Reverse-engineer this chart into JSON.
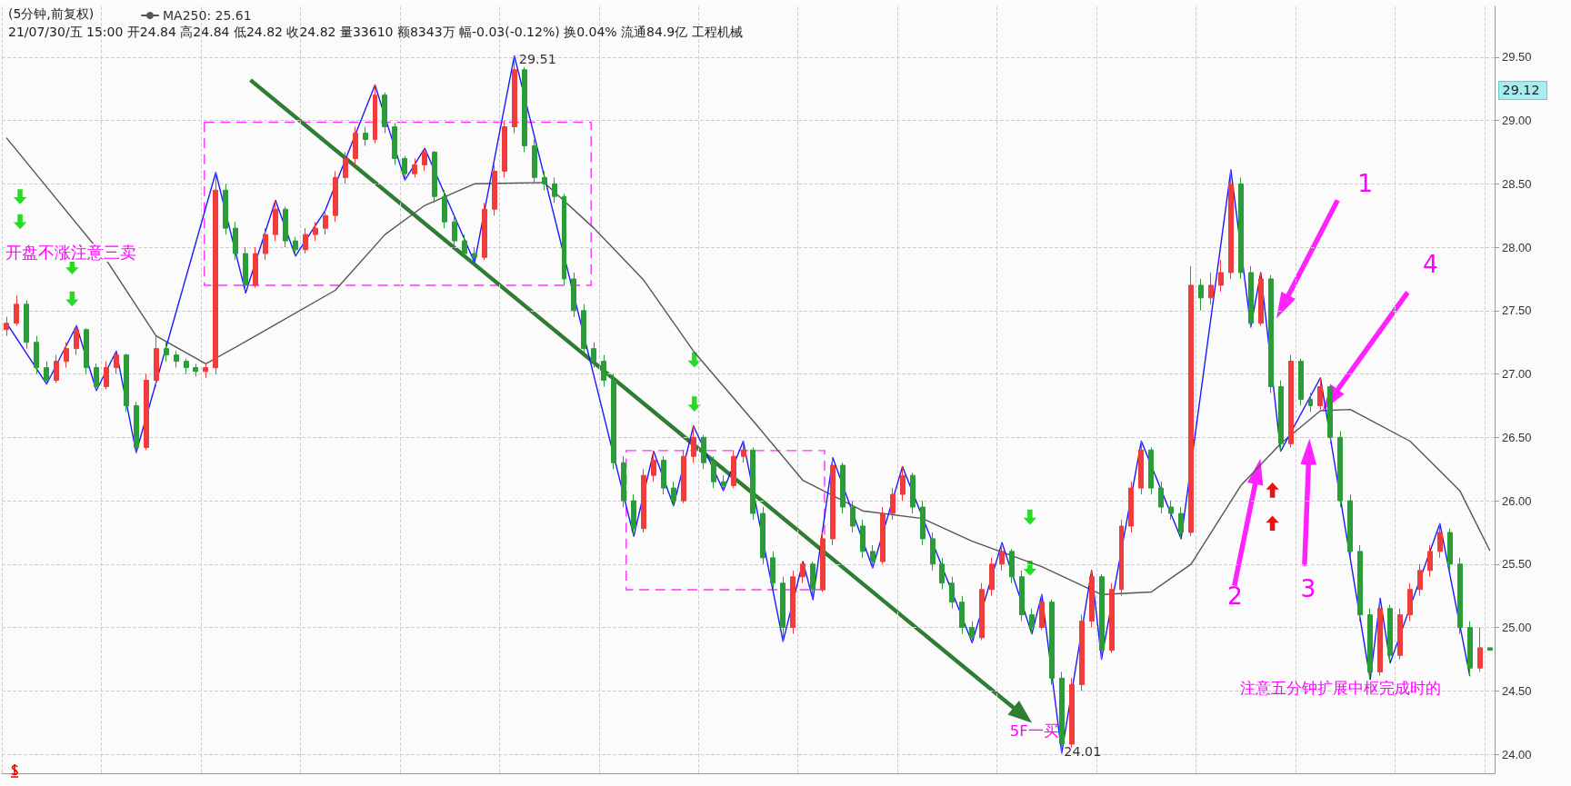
{
  "chart_data": {
    "type": "candlestick",
    "title": "(5分钟,前复权)",
    "subtitle": "21/07/30/五 15:00 开24.84 高24.84 低24.82 收24.82 量33610 额8343万 幅-0.03(-0.12%) 换0.04% 流通84.9亿 工程机械",
    "categories": [
      null,
      null,
      null,
      null,
      null,
      null,
      null,
      null,
      null,
      null,
      null,
      null,
      null,
      null,
      null,
      null,
      null,
      null,
      null,
      null,
      null,
      null,
      null,
      null,
      null,
      null,
      null,
      null,
      null,
      null,
      null,
      null,
      null,
      null,
      null,
      null,
      null,
      null,
      null,
      null,
      null,
      null,
      null,
      null,
      null,
      null,
      null,
      null,
      null,
      null,
      null,
      null,
      null,
      null,
      null,
      null,
      null,
      null,
      null,
      null,
      null,
      null,
      null,
      null,
      null,
      null,
      null,
      null,
      null,
      null,
      null,
      null,
      null,
      null,
      null,
      null,
      null,
      null,
      null,
      null,
      null,
      null,
      null,
      null,
      null,
      null,
      null,
      null,
      null,
      null,
      null,
      null,
      null,
      null,
      null,
      null,
      null,
      null,
      null,
      null,
      null,
      null,
      null,
      null,
      null,
      null,
      null,
      null,
      null,
      null,
      null,
      null,
      null,
      null,
      null,
      null,
      null,
      null,
      null,
      null,
      null,
      null,
      null,
      null,
      null,
      null,
      null,
      null,
      null,
      null,
      null,
      null,
      null,
      null,
      null,
      null,
      null,
      null,
      null,
      null,
      null,
      null,
      null,
      null,
      null,
      null,
      null,
      null,
      null,
      null
    ],
    "ohlc": [
      [
        27.35,
        27.45,
        27.3,
        27.4
      ],
      [
        27.4,
        27.62,
        27.38,
        27.55
      ],
      [
        27.55,
        27.58,
        27.2,
        27.25
      ],
      [
        27.25,
        27.3,
        27.0,
        27.05
      ],
      [
        27.05,
        27.1,
        26.92,
        26.95
      ],
      [
        26.95,
        27.15,
        26.93,
        27.1
      ],
      [
        27.1,
        27.25,
        27.05,
        27.2
      ],
      [
        27.2,
        27.38,
        27.15,
        27.35
      ],
      [
        27.35,
        27.36,
        27.0,
        27.05
      ],
      [
        27.05,
        27.08,
        26.87,
        26.9
      ],
      [
        26.9,
        27.1,
        26.88,
        27.05
      ],
      [
        27.05,
        27.18,
        27.0,
        27.15
      ],
      [
        27.15,
        27.16,
        26.7,
        26.75
      ],
      [
        26.75,
        26.78,
        26.38,
        26.42
      ],
      [
        26.42,
        27.0,
        26.4,
        26.95
      ],
      [
        26.95,
        27.3,
        26.9,
        27.2
      ],
      [
        27.2,
        27.25,
        27.1,
        27.15
      ],
      [
        27.15,
        27.18,
        27.05,
        27.1
      ],
      [
        27.1,
        27.12,
        27.0,
        27.05
      ],
      [
        27.05,
        27.08,
        26.98,
        27.02
      ],
      [
        27.02,
        27.08,
        26.97,
        27.05
      ],
      [
        27.05,
        28.59,
        27.0,
        28.45
      ],
      [
        28.45,
        28.5,
        28.1,
        28.15
      ],
      [
        28.15,
        28.2,
        27.9,
        27.95
      ],
      [
        27.95,
        28.0,
        27.64,
        27.7
      ],
      [
        27.7,
        28.0,
        27.68,
        27.95
      ],
      [
        27.95,
        28.15,
        27.9,
        28.1
      ],
      [
        28.1,
        28.37,
        28.05,
        28.3
      ],
      [
        28.3,
        28.32,
        28.0,
        28.05
      ],
      [
        28.05,
        28.08,
        27.93,
        27.98
      ],
      [
        27.98,
        28.15,
        27.95,
        28.1
      ],
      [
        28.1,
        28.2,
        28.05,
        28.15
      ],
      [
        28.15,
        28.29,
        28.1,
        28.25
      ],
      [
        28.25,
        28.6,
        28.2,
        28.55
      ],
      [
        28.55,
        28.75,
        28.5,
        28.7
      ],
      [
        28.7,
        28.95,
        28.65,
        28.9
      ],
      [
        28.9,
        28.95,
        28.8,
        28.85
      ],
      [
        28.85,
        29.28,
        28.82,
        29.2
      ],
      [
        29.2,
        29.22,
        28.9,
        28.95
      ],
      [
        28.95,
        28.98,
        28.65,
        28.7
      ],
      [
        28.7,
        28.72,
        28.53,
        28.58
      ],
      [
        28.58,
        28.7,
        28.55,
        28.65
      ],
      [
        28.65,
        28.78,
        28.6,
        28.75
      ],
      [
        28.75,
        28.76,
        28.35,
        28.4
      ],
      [
        28.4,
        28.45,
        28.15,
        28.2
      ],
      [
        28.2,
        28.25,
        28.0,
        28.05
      ],
      [
        28.05,
        28.1,
        27.92,
        27.95
      ],
      [
        27.95,
        28.0,
        27.88,
        27.92
      ],
      [
        27.92,
        28.35,
        27.9,
        28.3
      ],
      [
        28.3,
        28.65,
        28.25,
        28.6
      ],
      [
        28.6,
        29.0,
        28.55,
        28.95
      ],
      [
        28.95,
        29.51,
        28.9,
        29.4
      ],
      [
        29.4,
        29.42,
        28.75,
        28.8
      ],
      [
        28.8,
        28.85,
        28.5,
        28.55
      ],
      [
        28.55,
        28.6,
        28.45,
        28.5
      ],
      [
        28.5,
        28.55,
        28.35,
        28.4
      ],
      [
        28.4,
        28.42,
        27.7,
        27.75
      ],
      [
        27.75,
        27.8,
        27.45,
        27.5
      ],
      [
        27.5,
        27.55,
        27.15,
        27.2
      ],
      [
        27.2,
        27.25,
        27.05,
        27.1
      ],
      [
        27.1,
        27.15,
        26.9,
        26.95
      ],
      [
        26.95,
        27.0,
        26.25,
        26.3
      ],
      [
        26.3,
        26.35,
        25.95,
        26.0
      ],
      [
        26.0,
        26.05,
        25.72,
        25.78
      ],
      [
        25.78,
        26.25,
        25.75,
        26.2
      ],
      [
        26.2,
        26.39,
        26.15,
        26.32
      ],
      [
        26.32,
        26.35,
        26.05,
        26.1
      ],
      [
        26.1,
        26.15,
        25.96,
        26.0
      ],
      [
        26.0,
        26.4,
        25.98,
        26.35
      ],
      [
        26.35,
        26.59,
        26.3,
        26.5
      ],
      [
        26.5,
        26.52,
        26.25,
        26.3
      ],
      [
        26.3,
        26.35,
        26.1,
        26.15
      ],
      [
        26.15,
        26.2,
        26.08,
        26.12
      ],
      [
        26.12,
        26.4,
        26.1,
        26.35
      ],
      [
        26.35,
        26.47,
        26.3,
        26.4
      ],
      [
        26.4,
        26.42,
        25.85,
        25.9
      ],
      [
        25.9,
        25.95,
        25.5,
        25.55
      ],
      [
        25.55,
        25.6,
        25.3,
        25.35
      ],
      [
        25.35,
        25.4,
        24.89,
        25.0
      ],
      [
        25.0,
        25.45,
        24.95,
        25.4
      ],
      [
        25.4,
        25.52,
        25.35,
        25.5
      ],
      [
        25.5,
        25.52,
        25.22,
        25.3
      ],
      [
        25.3,
        25.75,
        25.28,
        25.7
      ],
      [
        25.7,
        26.34,
        25.65,
        26.28
      ],
      [
        26.28,
        26.3,
        25.9,
        25.95
      ],
      [
        25.95,
        26.0,
        25.75,
        25.8
      ],
      [
        25.8,
        25.85,
        25.55,
        25.6
      ],
      [
        25.6,
        25.65,
        25.47,
        25.52
      ],
      [
        25.52,
        25.95,
        25.5,
        25.9
      ],
      [
        25.9,
        26.1,
        25.85,
        26.05
      ],
      [
        26.05,
        26.27,
        26.0,
        26.2
      ],
      [
        26.2,
        26.22,
        25.9,
        25.95
      ],
      [
        25.95,
        26.0,
        25.65,
        25.7
      ],
      [
        25.7,
        25.75,
        25.45,
        25.5
      ],
      [
        25.5,
        25.55,
        25.3,
        25.35
      ],
      [
        25.35,
        25.4,
        25.15,
        25.2
      ],
      [
        25.2,
        25.25,
        24.95,
        25.0
      ],
      [
        25.0,
        25.05,
        24.88,
        24.92
      ],
      [
        24.92,
        25.35,
        24.9,
        25.3
      ],
      [
        25.3,
        25.55,
        25.25,
        25.5
      ],
      [
        25.5,
        25.67,
        25.45,
        25.6
      ],
      [
        25.6,
        25.62,
        25.35,
        25.4
      ],
      [
        25.4,
        25.45,
        25.05,
        25.1
      ],
      [
        25.1,
        25.15,
        24.95,
        25.0
      ],
      [
        25.0,
        25.26,
        24.98,
        25.2
      ],
      [
        25.2,
        25.22,
        24.55,
        24.6
      ],
      [
        24.6,
        24.65,
        24.01,
        24.08
      ],
      [
        24.08,
        24.6,
        24.05,
        24.55
      ],
      [
        24.55,
        25.1,
        24.5,
        25.05
      ],
      [
        25.05,
        25.45,
        25.0,
        25.4
      ],
      [
        25.4,
        25.42,
        24.75,
        24.82
      ],
      [
        24.82,
        25.35,
        24.8,
        25.3
      ],
      [
        25.3,
        25.85,
        25.25,
        25.8
      ],
      [
        25.8,
        26.15,
        25.75,
        26.1
      ],
      [
        26.1,
        26.47,
        26.05,
        26.4
      ],
      [
        26.4,
        26.42,
        26.05,
        26.1
      ],
      [
        26.1,
        26.15,
        25.9,
        25.95
      ],
      [
        25.95,
        26.0,
        25.85,
        25.9
      ],
      [
        25.9,
        25.95,
        25.7,
        25.75
      ],
      [
        25.75,
        27.85,
        25.72,
        27.7
      ],
      [
        27.7,
        27.75,
        27.5,
        27.6
      ],
      [
        27.6,
        27.8,
        27.55,
        27.7
      ],
      [
        27.7,
        27.9,
        27.65,
        27.8
      ],
      [
        27.8,
        28.61,
        27.75,
        28.5
      ],
      [
        28.5,
        28.55,
        27.75,
        27.8
      ],
      [
        27.8,
        27.85,
        27.37,
        27.4
      ],
      [
        27.4,
        27.8,
        27.38,
        27.75
      ],
      [
        27.75,
        27.78,
        26.85,
        26.9
      ],
      [
        26.9,
        26.95,
        26.39,
        26.45
      ],
      [
        26.45,
        27.15,
        26.42,
        27.1
      ],
      [
        27.1,
        27.12,
        26.75,
        26.8
      ],
      [
        26.8,
        26.85,
        26.7,
        26.75
      ],
      [
        26.75,
        26.97,
        26.72,
        26.9
      ],
      [
        26.9,
        26.92,
        26.45,
        26.5
      ],
      [
        26.5,
        26.55,
        25.95,
        26.0
      ],
      [
        26.0,
        26.05,
        25.55,
        25.6
      ],
      [
        25.6,
        25.65,
        25.05,
        25.1
      ],
      [
        25.1,
        25.15,
        24.59,
        24.65
      ],
      [
        24.65,
        25.23,
        24.62,
        25.15
      ],
      [
        25.15,
        25.18,
        24.72,
        24.78
      ],
      [
        24.78,
        25.15,
        24.75,
        25.1
      ],
      [
        25.1,
        25.35,
        25.05,
        25.3
      ],
      [
        25.3,
        25.5,
        25.25,
        25.45
      ],
      [
        25.45,
        25.65,
        25.4,
        25.6
      ],
      [
        25.6,
        25.82,
        25.55,
        25.75
      ],
      [
        25.75,
        25.78,
        25.45,
        25.5
      ],
      [
        25.5,
        25.55,
        24.95,
        25.0
      ],
      [
        25.0,
        25.05,
        24.62,
        24.68
      ],
      [
        24.68,
        25.0,
        24.65,
        24.84
      ],
      [
        24.84,
        24.84,
        24.82,
        24.82
      ]
    ],
    "series": [
      {
        "type": "line",
        "name": "MA250: 25.61",
        "color": "#555555",
        "values": [
          28.86,
          null,
          null,
          null,
          null,
          null,
          null,
          null,
          null,
          null,
          27.9,
          null,
          null,
          null,
          null,
          27.3,
          null,
          null,
          null,
          null,
          27.08,
          null,
          null,
          null,
          null,
          27.3,
          null,
          null,
          null,
          null,
          null,
          null,
          null,
          27.66,
          null,
          null,
          null,
          null,
          28.1,
          null,
          null,
          null,
          28.33,
          null,
          null,
          null,
          null,
          28.5,
          null,
          null,
          null,
          null,
          null,
          null,
          28.51,
          null,
          null,
          null,
          null,
          28.15,
          null,
          null,
          null,
          null,
          27.74,
          null,
          null,
          null,
          null,
          27.18,
          null,
          null,
          null,
          null,
          null,
          26.63,
          null,
          null,
          null,
          null,
          26.16,
          null,
          null,
          null,
          null,
          null,
          25.92,
          null,
          null,
          null,
          null,
          null,
          25.86,
          null,
          null,
          null,
          null,
          25.68,
          null,
          null,
          null,
          null,
          null,
          null,
          25.48,
          null,
          null,
          null,
          null,
          null,
          25.26,
          null,
          null,
          null,
          null,
          25.28,
          null,
          null,
          null,
          25.5,
          null,
          null,
          null,
          null,
          26.12,
          null,
          null,
          null,
          26.45,
          null,
          null,
          null,
          26.71,
          null,
          null,
          26.72,
          null,
          null,
          null,
          null,
          null,
          26.47,
          null,
          null,
          null,
          null,
          26.08,
          null,
          null,
          25.61
        ]
      },
      {
        "type": "line",
        "color": "#1a1aff",
        "values": [
          27.4,
          null,
          null,
          null,
          26.92,
          null,
          null,
          27.38,
          null,
          26.87,
          null,
          27.18,
          null,
          26.38,
          null,
          null,
          null,
          null,
          null,
          null,
          null,
          28.59,
          null,
          null,
          27.64,
          null,
          null,
          28.37,
          null,
          27.93,
          null,
          null,
          28.29,
          null,
          null,
          null,
          null,
          29.28,
          null,
          null,
          28.53,
          null,
          28.78,
          null,
          null,
          null,
          null,
          27.88,
          null,
          null,
          null,
          29.51,
          null,
          null,
          null,
          null,
          null,
          null,
          null,
          null,
          null,
          null,
          null,
          25.72,
          null,
          26.39,
          null,
          25.96,
          null,
          26.59,
          null,
          null,
          26.08,
          null,
          26.47,
          null,
          null,
          null,
          24.89,
          null,
          25.52,
          25.22,
          null,
          26.34,
          null,
          null,
          null,
          25.47,
          null,
          null,
          26.27,
          null,
          null,
          null,
          null,
          null,
          null,
          24.88,
          null,
          null,
          25.67,
          null,
          null,
          24.95,
          25.26,
          null,
          24.01,
          null,
          null,
          25.45,
          24.75,
          null,
          null,
          null,
          26.47,
          null,
          null,
          null,
          25.7,
          null,
          null,
          null,
          null,
          28.61,
          null,
          27.37,
          27.8,
          null,
          26.39,
          null,
          null,
          null,
          26.97,
          null,
          null,
          null,
          null,
          24.59,
          25.23,
          24.72,
          null,
          null,
          null,
          null,
          25.82,
          null,
          null,
          24.62,
          null,
          null
        ]
      }
    ],
    "ylim": [
      23.85,
      29.9
    ],
    "yticks": [
      {
        "value": 24,
        "label": "24.00"
      },
      {
        "value": 24.5,
        "label": "24.50"
      },
      {
        "value": 25,
        "label": "25.00"
      },
      {
        "value": 25.5,
        "label": "25.50"
      },
      {
        "value": 26,
        "label": "26.00"
      },
      {
        "value": 26.5,
        "label": "26.50"
      },
      {
        "value": 27,
        "label": "27.00"
      },
      {
        "value": 27.5,
        "label": "27.50"
      },
      {
        "value": 28,
        "label": "28.00"
      },
      {
        "value": 28.5,
        "label": "28.50"
      },
      {
        "value": 29,
        "label": "29.00"
      },
      {
        "value": 29.5,
        "label": "29.50"
      }
    ],
    "grid": true,
    "legend": "top left",
    "tick_labels": "y",
    "marker": "none",
    "line_style": "solid",
    "annotations": [
      "开盘不涨注意三卖",
      "29.51",
      "24.01",
      "5F一买",
      "1",
      "2",
      "3",
      "4",
      "注意五分钟扩展中枢完成时的",
      "29.12"
    ]
  }
}
